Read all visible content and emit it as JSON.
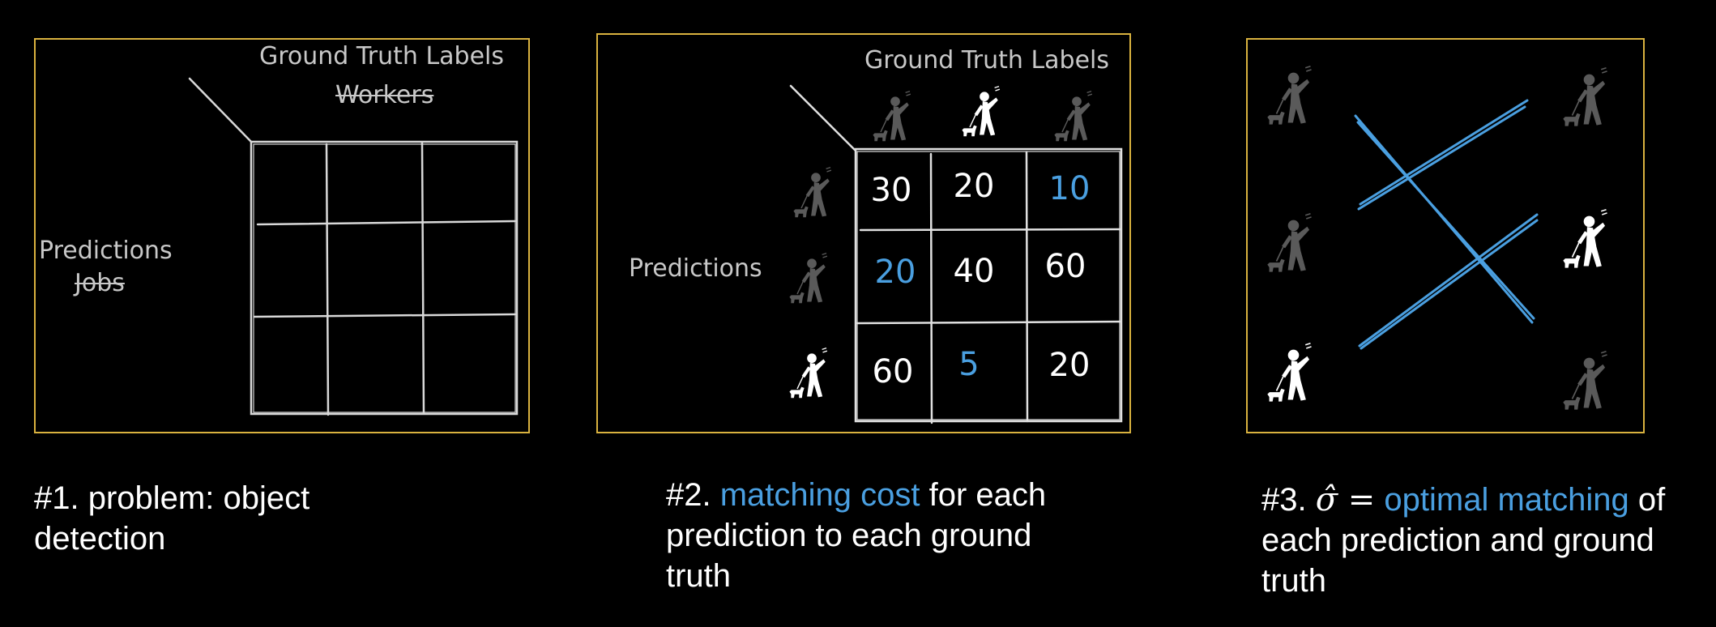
{
  "panel1": {
    "header": "Ground Truth Labels",
    "header_sub": "Workers",
    "side": "Predictions",
    "side_sub": "Jobs"
  },
  "panel2": {
    "header": "Ground Truth Labels",
    "side": "Predictions",
    "matrix": [
      [
        {
          "v": "30",
          "hl": false
        },
        {
          "v": "20",
          "hl": false
        },
        {
          "v": "10",
          "hl": true
        }
      ],
      [
        {
          "v": "20",
          "hl": true
        },
        {
          "v": "40",
          "hl": false
        },
        {
          "v": "60",
          "hl": false
        }
      ],
      [
        {
          "v": "60",
          "hl": false
        },
        {
          "v": "5",
          "hl": true
        },
        {
          "v": "20",
          "hl": false
        }
      ]
    ]
  },
  "captions": {
    "c1": "#1. problem: object detection",
    "c2_prefix": "#2. ",
    "c2_highlight": "matching cost",
    "c2_suffix": " for each prediction to each ground truth",
    "c3_prefix": "#3. ",
    "c3_symbol": "σ̂ =",
    "c3_highlight": "optimal matching",
    "c3_suffix": " of each prediction and ground truth"
  },
  "colors": {
    "panel_border": "#d9b23f",
    "highlight": "#4a9fe0",
    "figure_dim": "#5a5a5a",
    "figure_bright": "#ffffff"
  }
}
